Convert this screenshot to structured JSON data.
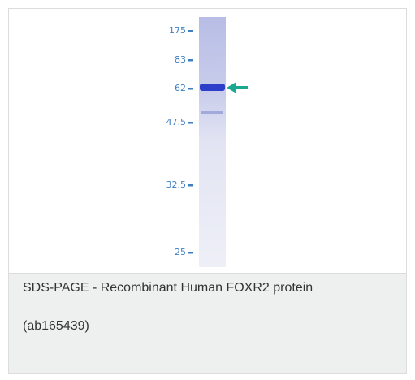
{
  "figure": {
    "markers": [
      "175",
      "83",
      "62",
      "47.5",
      "32.5",
      "25"
    ],
    "caption": {
      "line1": "SDS-PAGE - Recombinant Human FOXR2 protein",
      "line2": "(ab165439)"
    }
  }
}
